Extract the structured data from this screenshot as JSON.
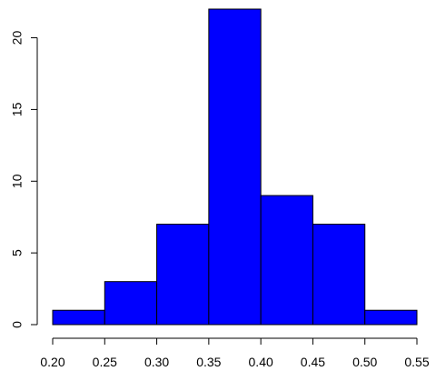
{
  "chart_data": {
    "type": "bar",
    "title": "",
    "xlabel": "",
    "ylabel": "",
    "bin_edges": [
      0.2,
      0.25,
      0.3,
      0.35,
      0.4,
      0.45,
      0.5,
      0.55
    ],
    "values": [
      1,
      3,
      7,
      22,
      9,
      7,
      1
    ],
    "xlim": [
      0.2,
      0.55
    ],
    "ylim": [
      0,
      22
    ],
    "x_ticks": [
      0.2,
      0.25,
      0.3,
      0.35,
      0.4,
      0.45,
      0.5,
      0.55
    ],
    "x_tick_labels": [
      "0.20",
      "0.25",
      "0.30",
      "0.35",
      "0.40",
      "0.45",
      "0.50",
      "0.55"
    ],
    "y_ticks": [
      0,
      5,
      10,
      15,
      20
    ],
    "y_tick_labels": [
      "0",
      "5",
      "10",
      "15",
      "20"
    ],
    "bar_color": "#0000ff",
    "bar_edge_color": "#000000",
    "grid": false,
    "legend": false
  }
}
